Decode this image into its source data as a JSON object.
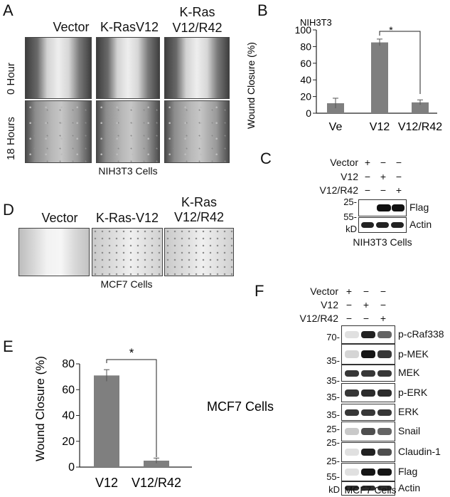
{
  "panels": {
    "A": {
      "label": "A",
      "columns": [
        "Vector",
        "K-RasV12",
        "K-Ras\nV12/R42"
      ],
      "rows": [
        "0 Hour",
        "18 Hours"
      ],
      "caption": "NIH3T3 Cells"
    },
    "B": {
      "label": "B",
      "title": "NIH3T3",
      "significance": "*"
    },
    "C": {
      "label": "C",
      "row_labels": [
        "Vector",
        "V12",
        "V12/R42"
      ],
      "signs": [
        [
          "+",
          "−",
          "−"
        ],
        [
          "−",
          "+",
          "−"
        ],
        [
          "−",
          "−",
          "+"
        ]
      ],
      "markers": [
        "25-",
        "55-",
        "kD"
      ],
      "bands": [
        "Flag",
        "Actin"
      ],
      "caption": "NIH3T3 Cells"
    },
    "D": {
      "label": "D",
      "columns": [
        "Vector",
        "K-Ras-V12",
        "K-Ras\nV12/R42"
      ],
      "caption": "MCF7 Cells"
    },
    "E": {
      "label": "E",
      "annotation": "MCF7 Cells",
      "significance": "*"
    },
    "F": {
      "label": "F",
      "row_labels": [
        "Vector",
        "V12",
        "V12/R42"
      ],
      "signs": [
        [
          "+",
          "−",
          "−"
        ],
        [
          "−",
          "+",
          "−"
        ],
        [
          "−",
          "−",
          "+"
        ]
      ],
      "markers": [
        "70-",
        "35-",
        "35-",
        "35-",
        "35-",
        "25-",
        "25-",
        "25-",
        "55-",
        "kD"
      ],
      "bands": [
        "p-cRaf338",
        "p-MEK",
        "MEK",
        "p-ERK",
        "ERK",
        "Snail",
        "Claudin-1",
        "Flag",
        "Actin"
      ],
      "band_intensity": [
        [
          0.05,
          0.9,
          0.6
        ],
        [
          0.1,
          0.95,
          0.8
        ],
        [
          0.8,
          0.8,
          0.8
        ],
        [
          0.8,
          0.85,
          0.85
        ],
        [
          0.8,
          0.8,
          0.8
        ],
        [
          0.15,
          0.7,
          0.6
        ],
        [
          0.05,
          0.9,
          0.7
        ],
        [
          0.05,
          0.95,
          0.95
        ],
        [
          0.85,
          0.85,
          0.85
        ]
      ],
      "caption": "MCF7 Cells"
    }
  },
  "chart_data": [
    {
      "type": "bar",
      "panel": "B",
      "title": "NIH3T3",
      "categories": [
        "Ve",
        "V12",
        "V12/R42"
      ],
      "values": [
        12,
        85,
        13
      ],
      "errors": [
        6,
        4,
        3
      ],
      "ylabel": "Wound Closure (%)",
      "xlabel": "",
      "ylim": [
        0,
        100
      ],
      "yticks": [
        0,
        20,
        40,
        60,
        80,
        100
      ],
      "bar_color": "#7f7f7f"
    },
    {
      "type": "bar",
      "panel": "E",
      "categories": [
        "V12",
        "V12/R42"
      ],
      "values": [
        71,
        5
      ],
      "errors": [
        4.5,
        2
      ],
      "ylabel": "Wound Closure (%)",
      "xlabel": "",
      "ylim": [
        0,
        80
      ],
      "yticks": [
        0,
        20,
        40,
        60,
        80
      ],
      "bar_color": "#7f7f7f"
    }
  ]
}
